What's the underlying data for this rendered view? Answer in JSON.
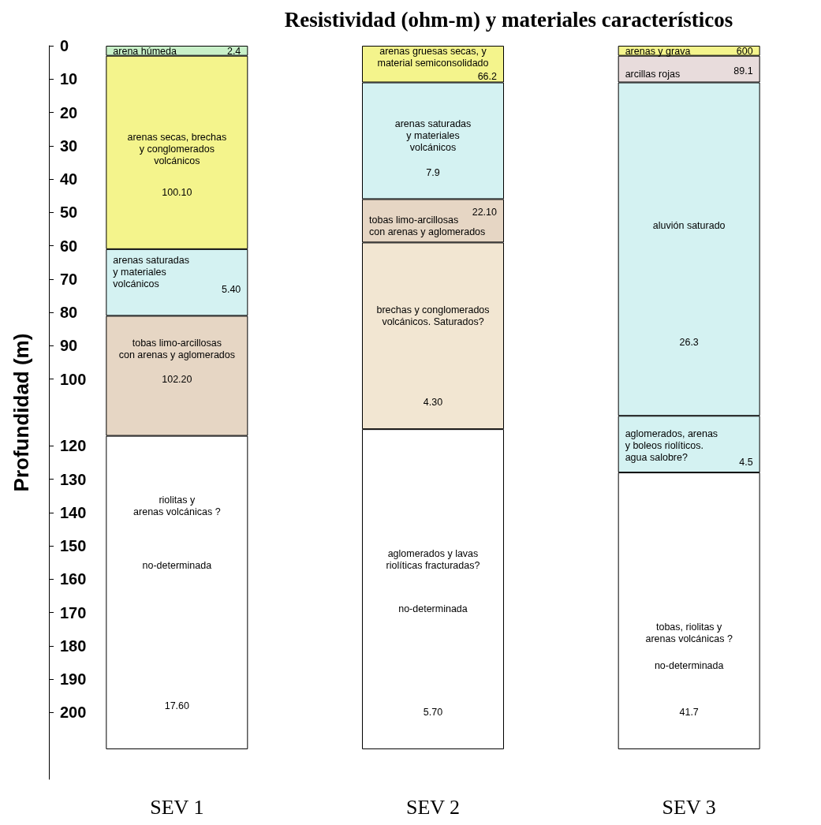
{
  "chart_data": {
    "type": "bar",
    "stacked": true,
    "title": "Resistividad (ohm-m) y materiales característicos",
    "ylabel": "Profundidad (m)",
    "categories": [
      "SEV 1",
      "SEV 2",
      "SEV 3"
    ],
    "series": [
      {
        "colors": [
          "#c8f0c8",
          "#f4f48c",
          "#f4f48c"
        ],
        "values": [
          3,
          11,
          3
        ]
      },
      {
        "colors": [
          "#f4f48c",
          "#d4f2f2",
          "#e8dcdc"
        ],
        "values": [
          58,
          35,
          8
        ]
      },
      {
        "colors": [
          "#d4f2f2",
          "#e6d6c4",
          "#d4f2f2"
        ],
        "values": [
          20,
          13,
          100
        ]
      },
      {
        "colors": [
          "#e6d6c4",
          "#f2e6d2",
          "#d4f2f2"
        ],
        "values": [
          36,
          56,
          17
        ]
      },
      {
        "colors": [
          "#ffffff",
          "#ffffff",
          "#ffffff"
        ],
        "values": [
          94,
          96,
          83
        ]
      }
    ],
    "ylim": [
      220,
      0
    ],
    "yticks": [
      0,
      10,
      20,
      30,
      40,
      50,
      60,
      70,
      80,
      90,
      100,
      120,
      130,
      140,
      150,
      160,
      170,
      180,
      190,
      200
    ],
    "annotations": [
      "arena húmeda",
      "2.4",
      "arenas secas, brechas\ny conglomerados\nvolcánicos",
      "100.10",
      "arenas saturadas\ny materiales\nvolcánicos",
      "5.40",
      "tobas limo-arcillosas\ncon arenas y aglomerados",
      "102.20",
      "riolitas y\narenas volcánicas ?",
      "no-determinada",
      "17.60",
      "arenas gruesas secas, y\nmaterial semiconsolidado",
      "66.2",
      "arenas saturadas\ny materiales\nvolcánicos",
      "7.9",
      "tobas limo-arcillosas\ncon arenas y aglomerados",
      "22.10",
      "brechas y conglomerados\nvolcánicos. Saturados?",
      "4.30",
      "aglomerados y lavas\nriolíticas fracturadas?",
      "no-determinada",
      "5.70",
      "arenas y grava",
      "600",
      "arcillas rojas",
      "89.1",
      "aluvión saturado",
      "26.3",
      "aglomerados, arenas\ny boleos riolíticos.\nagua salobre?",
      "4.5",
      "tobas, riolitas y\narenas volcánicas ?",
      "no-determinada",
      "41.7"
    ]
  }
}
